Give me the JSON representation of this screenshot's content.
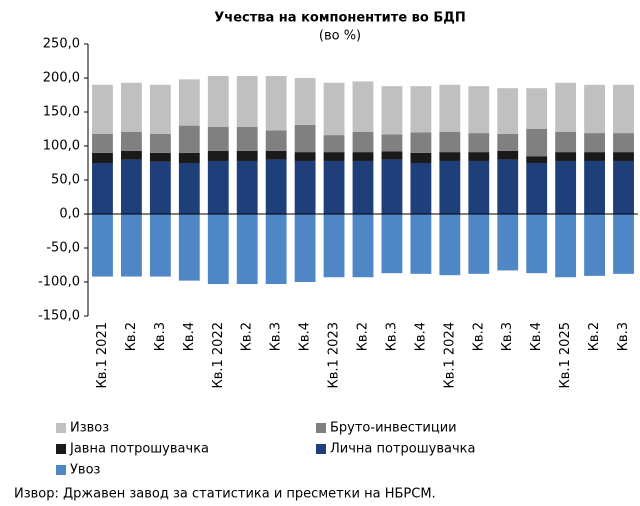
{
  "chart_data": {
    "type": "stacked_bar",
    "title": "Учества на компонентите во БДП",
    "subtitle": "(во %)",
    "source": "Извор: Државен завод за статистика и пресметки на НБРСМ.",
    "categories": [
      "Кв.1 2021",
      "Кв.2",
      "Кв.3",
      "Кв.4",
      "Кв.1 2022",
      "Кв.2",
      "Кв.3",
      "Кв.4",
      "Кв.1 2023",
      "Кв.2",
      "Кв.3",
      "Кв.4",
      "Кв.1 2024",
      "Кв.2",
      "Кв.3",
      "Кв.4",
      "Кв.1 2025",
      "Кв.2",
      "Кв.3"
    ],
    "series": [
      {
        "name": "Извоз",
        "color": "#c0c0c0",
        "values": [
          72,
          72,
          72,
          68,
          75,
          75,
          80,
          69,
          77,
          74,
          71,
          68,
          69,
          69,
          67,
          60,
          72,
          71,
          71
        ]
      },
      {
        "name": "Бруто-инвестиции",
        "color": "#808080",
        "values": [
          28,
          28,
          28,
          40,
          35,
          35,
          30,
          40,
          25,
          30,
          25,
          30,
          30,
          28,
          25,
          40,
          30,
          28,
          28
        ]
      },
      {
        "name": "Јавна потрошувачка",
        "color": "#1a1a1a",
        "values": [
          15,
          13,
          13,
          15,
          15,
          15,
          13,
          13,
          13,
          13,
          12,
          15,
          13,
          13,
          13,
          10,
          13,
          13,
          13
        ]
      },
      {
        "name": "Лична потрошувачка",
        "color": "#1f3f7a",
        "values": [
          75,
          80,
          77,
          75,
          78,
          78,
          80,
          78,
          78,
          78,
          80,
          75,
          78,
          78,
          80,
          75,
          78,
          78,
          78
        ]
      },
      {
        "name": "Увоз",
        "color": "#4f86c6",
        "values": [
          -92,
          -92,
          -92,
          -98,
          -103,
          -103,
          -103,
          -100,
          -93,
          -93,
          -87,
          -88,
          -90,
          -88,
          -83,
          -87,
          -93,
          -91,
          -88
        ]
      }
    ],
    "ylim": [
      -150,
      250
    ],
    "yticks": [
      {
        "value": -150,
        "label": "-150,0"
      },
      {
        "value": -100,
        "label": "-100,0"
      },
      {
        "value": -50,
        "label": "-50,0"
      },
      {
        "value": 0,
        "label": "0,0"
      },
      {
        "value": 50,
        "label": "50,0"
      },
      {
        "value": 100,
        "label": "100,0"
      },
      {
        "value": 150,
        "label": "150,0"
      },
      {
        "value": 200,
        "label": "200,0"
      },
      {
        "value": 250,
        "label": "250,0"
      }
    ]
  }
}
